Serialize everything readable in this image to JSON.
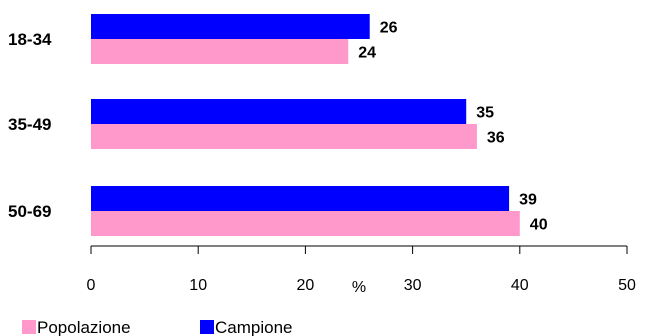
{
  "chart_data": {
    "type": "bar",
    "orientation": "horizontal",
    "categories": [
      "18-34",
      "35-49",
      "50-69"
    ],
    "series": [
      {
        "name": "Campione",
        "values": [
          26,
          35,
          39
        ],
        "color": "#0000ff"
      },
      {
        "name": "Popolazione",
        "values": [
          24,
          36,
          40
        ],
        "color": "#ff99cc"
      }
    ],
    "xlim": [
      0,
      50
    ],
    "xticks": [
      0,
      10,
      20,
      30,
      40,
      50
    ],
    "xlabel": "%",
    "grid": false,
    "legend": [
      "Popolazione",
      "Campione"
    ],
    "legend_position": "bottom-left"
  }
}
